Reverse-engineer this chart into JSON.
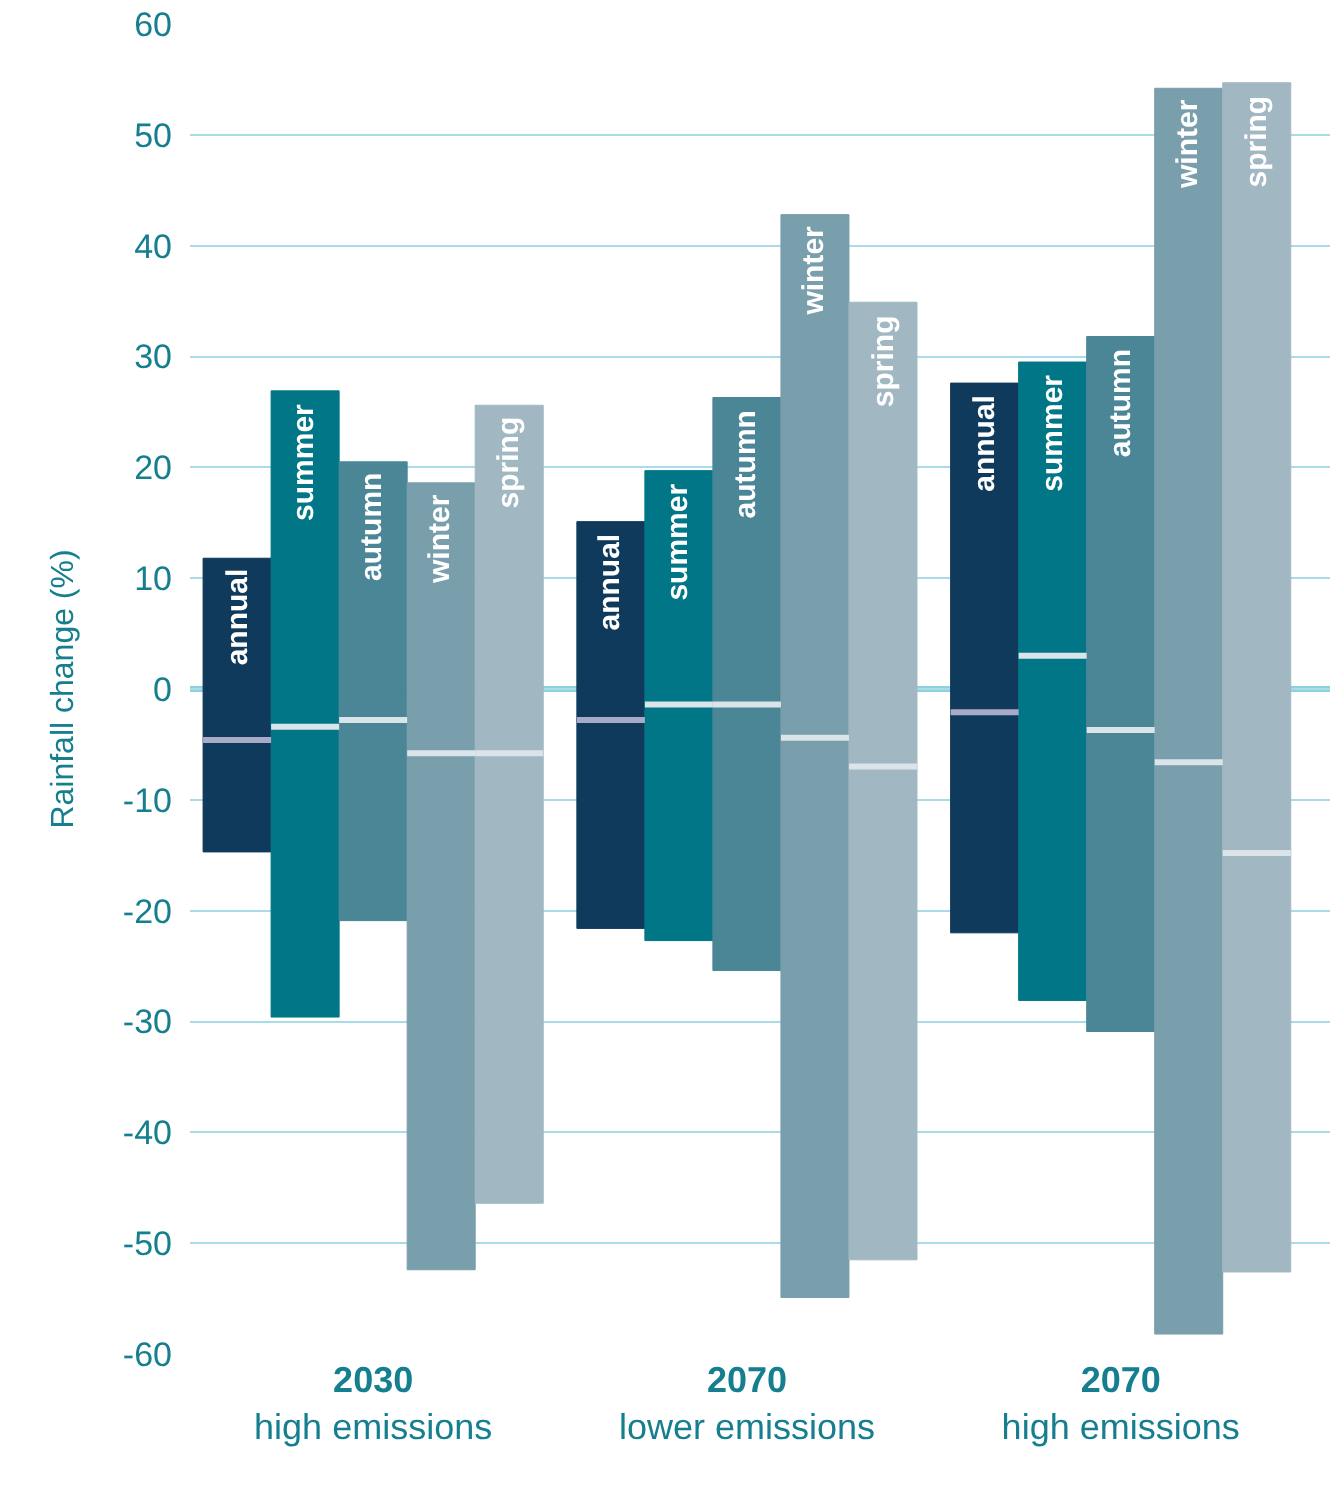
{
  "chart_data": {
    "type": "box",
    "ylabel": "Rainfall change (%)",
    "categories": [
      "2030\nhigh emissions",
      "2070\nlower emissions",
      "2070\nhigh emissions"
    ],
    "ylim": [
      -60,
      60
    ],
    "yticks": [
      -60,
      -50,
      -40,
      -30,
      -20,
      -10,
      0,
      10,
      20,
      30,
      40,
      50,
      60
    ],
    "grid": "y",
    "legend": "left",
    "ref_lines": [
      {
        "axis": "y",
        "value": 0,
        "color": "#8fd0dd"
      }
    ],
    "series": [
      {
        "name": "annual",
        "color": "#0f3a5c",
        "boxes": [
          {
            "low": -14.7,
            "q1": -14.7,
            "median": -4.6,
            "q3": 11.8,
            "high": 11.8
          },
          {
            "low": -21.6,
            "q1": -21.6,
            "median": -2.8,
            "q3": 15.1,
            "high": 15.1
          },
          {
            "low": -22.0,
            "q1": -22.0,
            "median": -2.1,
            "q3": 27.6,
            "high": 27.6
          }
        ]
      },
      {
        "name": "summer",
        "color": "#007686",
        "boxes": [
          {
            "low": -29.6,
            "q1": -29.6,
            "median": -3.4,
            "q3": 26.9,
            "high": 26.9
          },
          {
            "low": -22.7,
            "q1": -22.7,
            "median": -1.4,
            "q3": 19.7,
            "high": 19.7
          },
          {
            "low": -28.1,
            "q1": -28.1,
            "median": 3.0,
            "q3": 29.5,
            "high": 29.5
          }
        ]
      },
      {
        "name": "autumn",
        "color": "#4b8697",
        "boxes": [
          {
            "low": -20.9,
            "q1": -20.9,
            "median": -2.8,
            "q3": 20.5,
            "high": 20.5
          },
          {
            "low": -25.4,
            "q1": -25.4,
            "median": -1.4,
            "q3": 26.3,
            "high": 26.3
          },
          {
            "low": -30.9,
            "q1": -30.9,
            "median": -3.7,
            "q3": 31.8,
            "high": 31.8
          }
        ]
      },
      {
        "name": "winter",
        "color": "#799eac",
        "boxes": [
          {
            "low": -52.4,
            "q1": -52.4,
            "median": -5.8,
            "q3": 18.6,
            "high": 18.6
          },
          {
            "low": -54.9,
            "q1": -54.9,
            "median": -4.4,
            "q3": 42.8,
            "high": 42.8
          },
          {
            "low": -58.2,
            "q1": -58.2,
            "median": -6.6,
            "q3": 54.2,
            "high": 54.2
          }
        ]
      },
      {
        "name": "spring",
        "color": "#a1b8c2",
        "boxes": [
          {
            "low": -46.4,
            "q1": -46.4,
            "median": -5.8,
            "q3": 25.6,
            "high": 25.6
          },
          {
            "low": -51.5,
            "q1": -51.5,
            "median": -7.0,
            "q3": 34.9,
            "high": 34.9
          },
          {
            "low": -52.6,
            "q1": -52.6,
            "median": -14.8,
            "q3": 54.7,
            "high": 54.7
          }
        ]
      }
    ]
  }
}
